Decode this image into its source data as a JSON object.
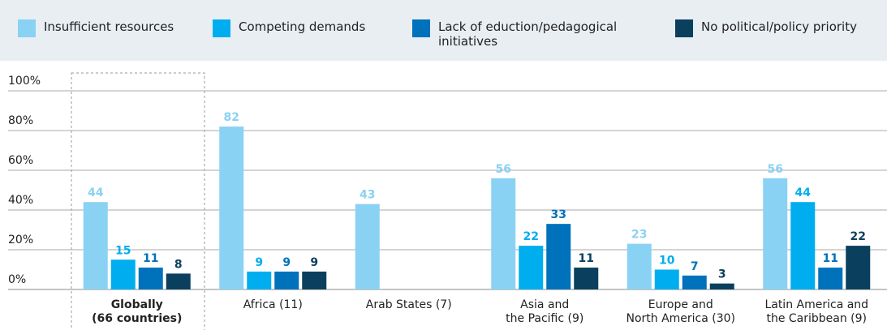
{
  "chart_data": {
    "type": "bar",
    "categories": [
      "Globally\n(66 countries)",
      "Africa (11)",
      "Arab States (7)",
      "Asia and\nthe Pacific (9)",
      "Europe and\nNorth America (30)",
      "Latin America and\nthe Caribbean (9)"
    ],
    "series": [
      {
        "name": "Insufficient resources",
        "color": "#8ad2f4",
        "values": [
          44,
          82,
          43,
          56,
          23,
          56
        ]
      },
      {
        "name": "Competing demands",
        "color": "#00aeef",
        "values": [
          15,
          9,
          null,
          22,
          10,
          44
        ]
      },
      {
        "name": "Lack of eduction/pedagogical initiatives",
        "color": "#0071bb",
        "values": [
          11,
          9,
          null,
          33,
          7,
          11
        ]
      },
      {
        "name": "No political/policy priority",
        "color": "#0b3f5e",
        "values": [
          8,
          9,
          null,
          11,
          3,
          22
        ]
      }
    ],
    "ylim": [
      0,
      100
    ],
    "yticks": [
      {
        "value": 0,
        "label": "0%"
      },
      {
        "value": 20,
        "label": "20%"
      },
      {
        "value": 40,
        "label": "40%"
      },
      {
        "value": 60,
        "label": "60%"
      },
      {
        "value": 80,
        "label": "80%"
      },
      {
        "value": 100,
        "label": "100%"
      }
    ],
    "grid": true
  }
}
